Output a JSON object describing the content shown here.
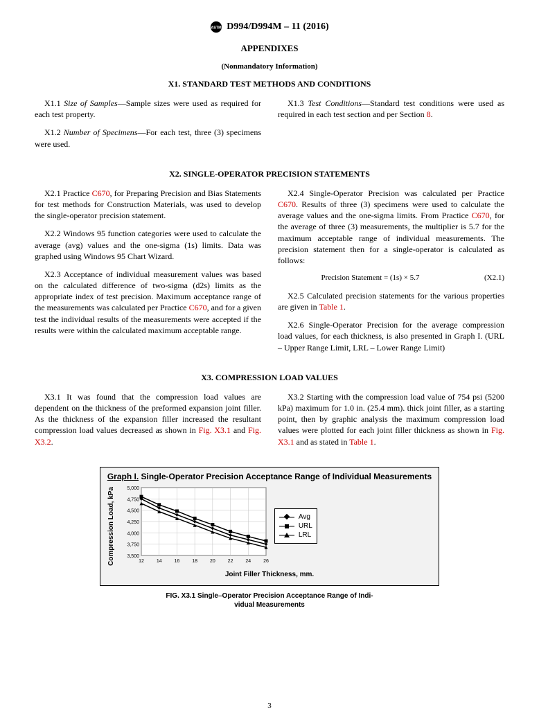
{
  "header": {
    "designation": "D994/D994M – 11 (2016)"
  },
  "appendix_title": "APPENDIXES",
  "nonmandatory": "(Nonmandatory Information)",
  "x1": {
    "heading": "X1.  STANDARD TEST METHODS AND CONDITIONS",
    "p1_num": "X1.1",
    "p1_ital": "Size of Samples",
    "p1_rest": "—Sample sizes were used as required for each test property.",
    "p2_num": "X1.2",
    "p2_ital": "Number of Specimens",
    "p2_rest": "—For each test, three (3) specimens were used.",
    "p3_num": "X1.3",
    "p3_ital": "Test Conditions",
    "p3_rest_a": "—Standard test conditions were used as required in each test section and per Section ",
    "p3_link": "8",
    "p3_rest_b": "."
  },
  "x2": {
    "heading": "X2.  SINGLE-OPERATOR PRECISION STATEMENTS",
    "p1_a": "X2.1  Practice ",
    "p1_link": "C670",
    "p1_b": ", for Preparing Precision and Bias Statements for test methods for Construction Materials, was used to develop the single-operator precision statement.",
    "p2": "X2.2  Windows 95 function categories were used to calculate the average (avg) values and the one-sigma (1s) limits. Data was graphed using Windows 95 Chart Wizard.",
    "p3_a": "X2.3  Acceptance of individual measurement values was based on the calculated difference of two-sigma (d2s) limits as the appropriate index of test precision. Maximum acceptance range of the measurements was calculated per Practice ",
    "p3_link": "C670",
    "p3_b": ", and for a given test the individual results of the measurements were accepted if the results were within the calculated maximum acceptable range.",
    "p4_a": "X2.4  Single-Operator Precision was calculated per Practice ",
    "p4_link1": "C670",
    "p4_b": ". Results of three (3) specimens were used to calculate the average values and the one-sigma limits. From Practice ",
    "p4_link2": "C670",
    "p4_c": ", for the average of three (3) measurements, the multiplier is 5.7 for the maximum acceptable range of individual measurements. The precision statement then for a single-operator is calculated as follows:",
    "eq": "Precision Statement = (1s) × 5.7",
    "eqnum": "(X2.1)",
    "p5_a": "X2.5  Calculated precision statements for the various properties are given in ",
    "p5_link": "Table 1",
    "p5_b": ".",
    "p6": "X2.6  Single-Operator Precision for the average compression load values, for each thickness, is also presented in Graph I. (URL – Upper Range Limit, LRL – Lower Range Limit)"
  },
  "x3": {
    "heading": "X3.  COMPRESSION LOAD VALUES",
    "p1_a": "X3.1  It was found that the compression load values are dependent on the thickness of the preformed expansion joint filler. As the thickness of the expansion filler increased the resultant compression load values decreased as shown in ",
    "p1_link1": "Fig. X3.1",
    "p1_mid": " and ",
    "p1_link2": "Fig. X3.2",
    "p1_b": ".",
    "p2_a": "X3.2  Starting with the compression load value of 754 psi (5200 kPa) maximum for 1.0 in. (25.4 mm). thick joint filler, as a starting point, then by graphic analysis the maximum compression load values were plotted for each joint filler thickness as shown in ",
    "p2_link1": "Fig. X3.1",
    "p2_mid": " and as stated in ",
    "p2_link2": "Table 1",
    "p2_b": "."
  },
  "chart": {
    "title_u": "Graph I.",
    "title_rest": " Single-Operator Precision Acceptance Range of Individual Measurements",
    "ylabel": "Compression Load, kPa",
    "xlabel": "Joint Filler Thickness, mm.",
    "yticks": [
      "5,000",
      "4,750",
      "4,500",
      "4,250",
      "4,000",
      "3,750",
      "3,500"
    ],
    "xticks": [
      "12",
      "14",
      "16",
      "18",
      "20",
      "22",
      "24",
      "26"
    ],
    "ylim": [
      3500,
      5000
    ],
    "xlim": [
      12,
      26
    ],
    "series": {
      "avg": {
        "label": "Avg",
        "color": "#000000",
        "marker": "diamond",
        "values": [
          [
            12,
            4750
          ],
          [
            14,
            4550
          ],
          [
            16,
            4400
          ],
          [
            18,
            4250
          ],
          [
            20,
            4100
          ],
          [
            22,
            3950
          ],
          [
            24,
            3850
          ],
          [
            26,
            3750
          ]
        ]
      },
      "url": {
        "label": "URL",
        "color": "#000000",
        "marker": "square",
        "values": [
          [
            12,
            4800
          ],
          [
            14,
            4620
          ],
          [
            16,
            4480
          ],
          [
            18,
            4320
          ],
          [
            20,
            4180
          ],
          [
            22,
            4030
          ],
          [
            24,
            3920
          ],
          [
            26,
            3820
          ]
        ]
      },
      "lrl": {
        "label": "LRL",
        "color": "#000000",
        "marker": "triangle",
        "values": [
          [
            12,
            4650
          ],
          [
            14,
            4470
          ],
          [
            16,
            4320
          ],
          [
            18,
            4170
          ],
          [
            20,
            4020
          ],
          [
            22,
            3880
          ],
          [
            24,
            3780
          ],
          [
            26,
            3680
          ]
        ]
      }
    },
    "plot_bg": "#ffffff",
    "grid_color": "#bfbfbf",
    "line_width": 1.5,
    "marker_size": 5,
    "font_family": "Arial"
  },
  "fig_caption_a": "FIG. X3.1 Single–Operator Precision Acceptance Range of Indi-",
  "fig_caption_b": "vidual Measurements",
  "pagenum": "3"
}
